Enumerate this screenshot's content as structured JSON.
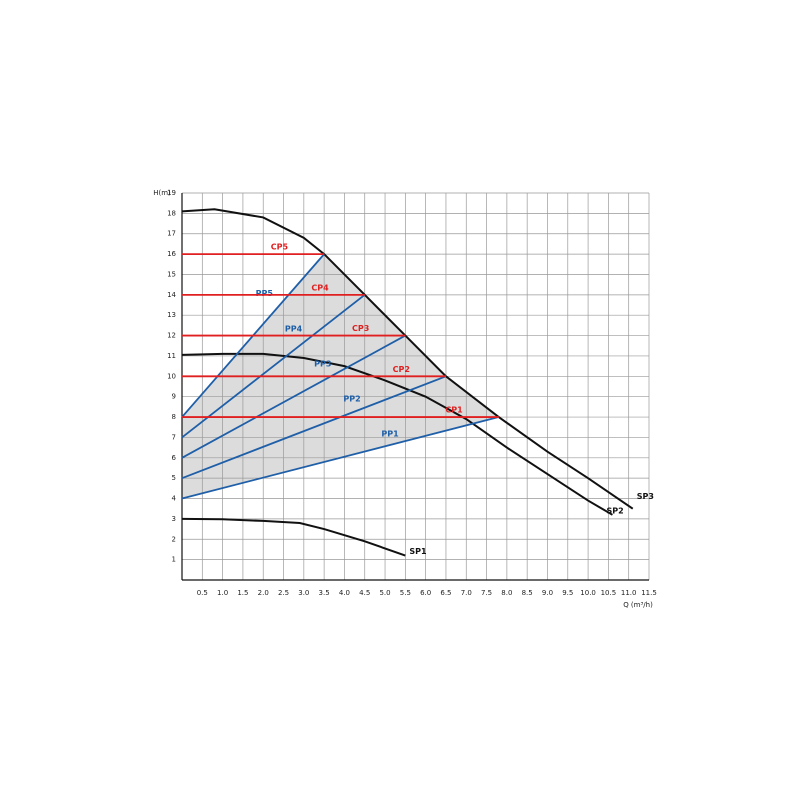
{
  "chart_data": {
    "type": "line",
    "x_label": "Q (m³/h)",
    "y_label": "H(m)",
    "xlim": [
      0,
      11.5
    ],
    "ylim": [
      0,
      19
    ],
    "xticks": [
      {
        "value": 0.5,
        "label": "0.5"
      },
      {
        "value": 1,
        "label": "1.0"
      },
      {
        "value": 1.5,
        "label": "1.5"
      },
      {
        "value": 2,
        "label": "2.0"
      },
      {
        "value": 2.5,
        "label": "2.5"
      },
      {
        "value": 3,
        "label": "3.0"
      },
      {
        "value": 3.5,
        "label": "3.5"
      },
      {
        "value": 4,
        "label": "4.0"
      },
      {
        "value": 4.5,
        "label": "4.5"
      },
      {
        "value": 5,
        "label": "5.0"
      },
      {
        "value": 5.5,
        "label": "5.5"
      },
      {
        "value": 6,
        "label": "6.0"
      },
      {
        "value": 6.5,
        "label": "6.5"
      },
      {
        "value": 7,
        "label": "7.0"
      },
      {
        "value": 7.5,
        "label": "7.5"
      },
      {
        "value": 8,
        "label": "8.0"
      },
      {
        "value": 8.5,
        "label": "8.5"
      },
      {
        "value": 9,
        "label": "9.0"
      },
      {
        "value": 9.5,
        "label": "9.5"
      },
      {
        "value": 10,
        "label": "10.0"
      },
      {
        "value": 10.5,
        "label": "10.5"
      },
      {
        "value": 11,
        "label": "11.0"
      },
      {
        "value": 11.5,
        "label": "11.5"
      }
    ],
    "yticks": [
      1,
      2,
      3,
      4,
      5,
      6,
      7,
      8,
      9,
      10,
      11,
      12,
      13,
      14,
      15,
      16,
      17,
      18,
      19
    ],
    "grid": true,
    "series": [
      {
        "name": "SP3",
        "color": "#111111",
        "x": [
          0,
          0.8,
          2,
          3,
          3.5,
          4.5,
          5.5,
          6.5,
          7.8,
          9,
          10,
          11.1
        ],
        "values": [
          18.1,
          18.2,
          17.8,
          16.8,
          16,
          14,
          12,
          10,
          8,
          6.3,
          5,
          3.5
        ]
      },
      {
        "name": "SP2",
        "color": "#111111",
        "x": [
          0,
          1,
          2,
          3,
          4,
          5,
          6,
          7,
          8,
          9,
          10,
          10.6
        ],
        "values": [
          11.05,
          11.1,
          11.1,
          10.9,
          10.5,
          9.8,
          9,
          7.9,
          6.5,
          5.2,
          3.9,
          3.2
        ]
      },
      {
        "name": "SP1",
        "color": "#111111",
        "x": [
          0,
          1,
          2,
          2.9,
          3.5,
          4.5,
          5.5
        ],
        "values": [
          3,
          2.98,
          2.9,
          2.8,
          2.5,
          1.9,
          1.2
        ]
      },
      {
        "name": "PP1",
        "color": "#1f5fa8",
        "x": [
          0,
          7.8
        ],
        "values": [
          4,
          8
        ]
      },
      {
        "name": "PP2",
        "color": "#1f5fa8",
        "x": [
          0,
          6.5
        ],
        "values": [
          5,
          10
        ]
      },
      {
        "name": "PP3",
        "color": "#1f5fa8",
        "x": [
          0,
          5.5
        ],
        "values": [
          6,
          12
        ]
      },
      {
        "name": "PP4",
        "color": "#1f5fa8",
        "x": [
          0,
          4.5
        ],
        "values": [
          7,
          14
        ]
      },
      {
        "name": "PP5",
        "color": "#1f5fa8",
        "x": [
          0,
          3.5
        ],
        "values": [
          8,
          16
        ]
      },
      {
        "name": "CP1",
        "color": "#e02020",
        "x": [
          0,
          7.8
        ],
        "values": [
          8,
          8
        ]
      },
      {
        "name": "CP2",
        "color": "#e02020",
        "x": [
          0,
          6.5
        ],
        "values": [
          10,
          10
        ]
      },
      {
        "name": "CP3",
        "color": "#e02020",
        "x": [
          0,
          5.5
        ],
        "values": [
          12,
          12
        ]
      },
      {
        "name": "CP4",
        "color": "#e02020",
        "x": [
          0,
          4.5
        ],
        "values": [
          14,
          14
        ]
      },
      {
        "name": "CP5",
        "color": "#e02020",
        "x": [
          0,
          3.5
        ],
        "values": [
          16,
          16
        ]
      }
    ],
    "fill_color": "#dcdcdc"
  }
}
